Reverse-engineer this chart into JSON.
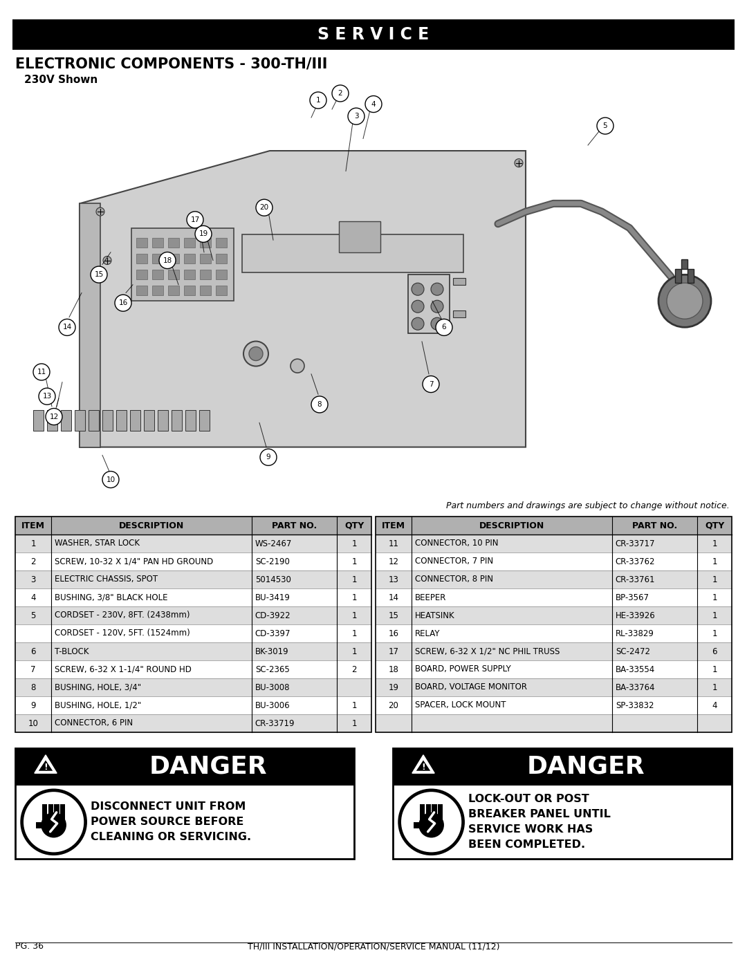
{
  "page_bg": "#ffffff",
  "header_bar_color": "#000000",
  "header_text": "S E R V I C E",
  "header_text_color": "#ffffff",
  "title_line1": "ELECTRONIC COMPONENTS - 300-TH/III",
  "title_line2": "230V Shown",
  "note_text": "Part numbers and drawings are subject to change without notice.",
  "table_header_bg": "#b0b0b0",
  "table_alt_bg": "#dedede",
  "table_white_bg": "#ffffff",
  "table_rows": [
    [
      "1",
      "WASHER, STAR LOCK",
      "WS-2467",
      "1",
      "11",
      "CONNECTOR, 10 PIN",
      "CR-33717",
      "1"
    ],
    [
      "2",
      "SCREW, 10-32 X 1/4\" PAN HD GROUND",
      "SC-2190",
      "1",
      "12",
      "CONNECTOR, 7 PIN",
      "CR-33762",
      "1"
    ],
    [
      "3",
      "ELECTRIC CHASSIS, SPOT",
      "5014530",
      "1",
      "13",
      "CONNECTOR, 8 PIN",
      "CR-33761",
      "1"
    ],
    [
      "4",
      "BUSHING, 3/8\" BLACK HOLE",
      "BU-3419",
      "1",
      "14",
      "BEEPER",
      "BP-3567",
      "1"
    ],
    [
      "5",
      "CORDSET - 230V, 8FT. (2438mm)",
      "CD-3922",
      "1",
      "15",
      "HEATSINK",
      "HE-33926",
      "1"
    ],
    [
      "",
      "CORDSET - 120V, 5FT. (1524mm)",
      "CD-3397",
      "1",
      "16",
      "RELAY",
      "RL-33829",
      "1"
    ],
    [
      "6",
      "T-BLOCK",
      "BK-3019",
      "1",
      "17",
      "SCREW, 6-32 X 1/2\" NC PHIL TRUSS",
      "SC-2472",
      "6"
    ],
    [
      "7",
      "SCREW, 6-32 X 1-1/4\" ROUND HD",
      "SC-2365",
      "2",
      "18",
      "BOARD, POWER SUPPLY",
      "BA-33554",
      "1"
    ],
    [
      "8",
      "BUSHING, HOLE, 3/4\"",
      "BU-3008",
      "",
      "19",
      "BOARD, VOLTAGE MONITOR",
      "BA-33764",
      "1"
    ],
    [
      "9",
      "BUSHING, HOLE, 1/2\"",
      "BU-3006",
      "1",
      "20",
      "SPACER, LOCK MOUNT",
      "SP-33832",
      "4"
    ],
    [
      "10",
      "CONNECTOR, 6 PIN",
      "CR-33719",
      "1",
      "",
      "",
      "",
      ""
    ]
  ],
  "danger1_text": "DISCONNECT UNIT FROM\nPOWER SOURCE BEFORE\nCLEANING OR SERVICING.",
  "danger2_text": "LOCK-OUT OR POST\nBREAKER PANEL UNTIL\nSERVICE WORK HAS\nBEEN COMPLETED.",
  "footer_left": "PG. 36",
  "footer_center": "TH/III INSTALLATION/OPERATION/SERVICE MANUAL (11/12)"
}
